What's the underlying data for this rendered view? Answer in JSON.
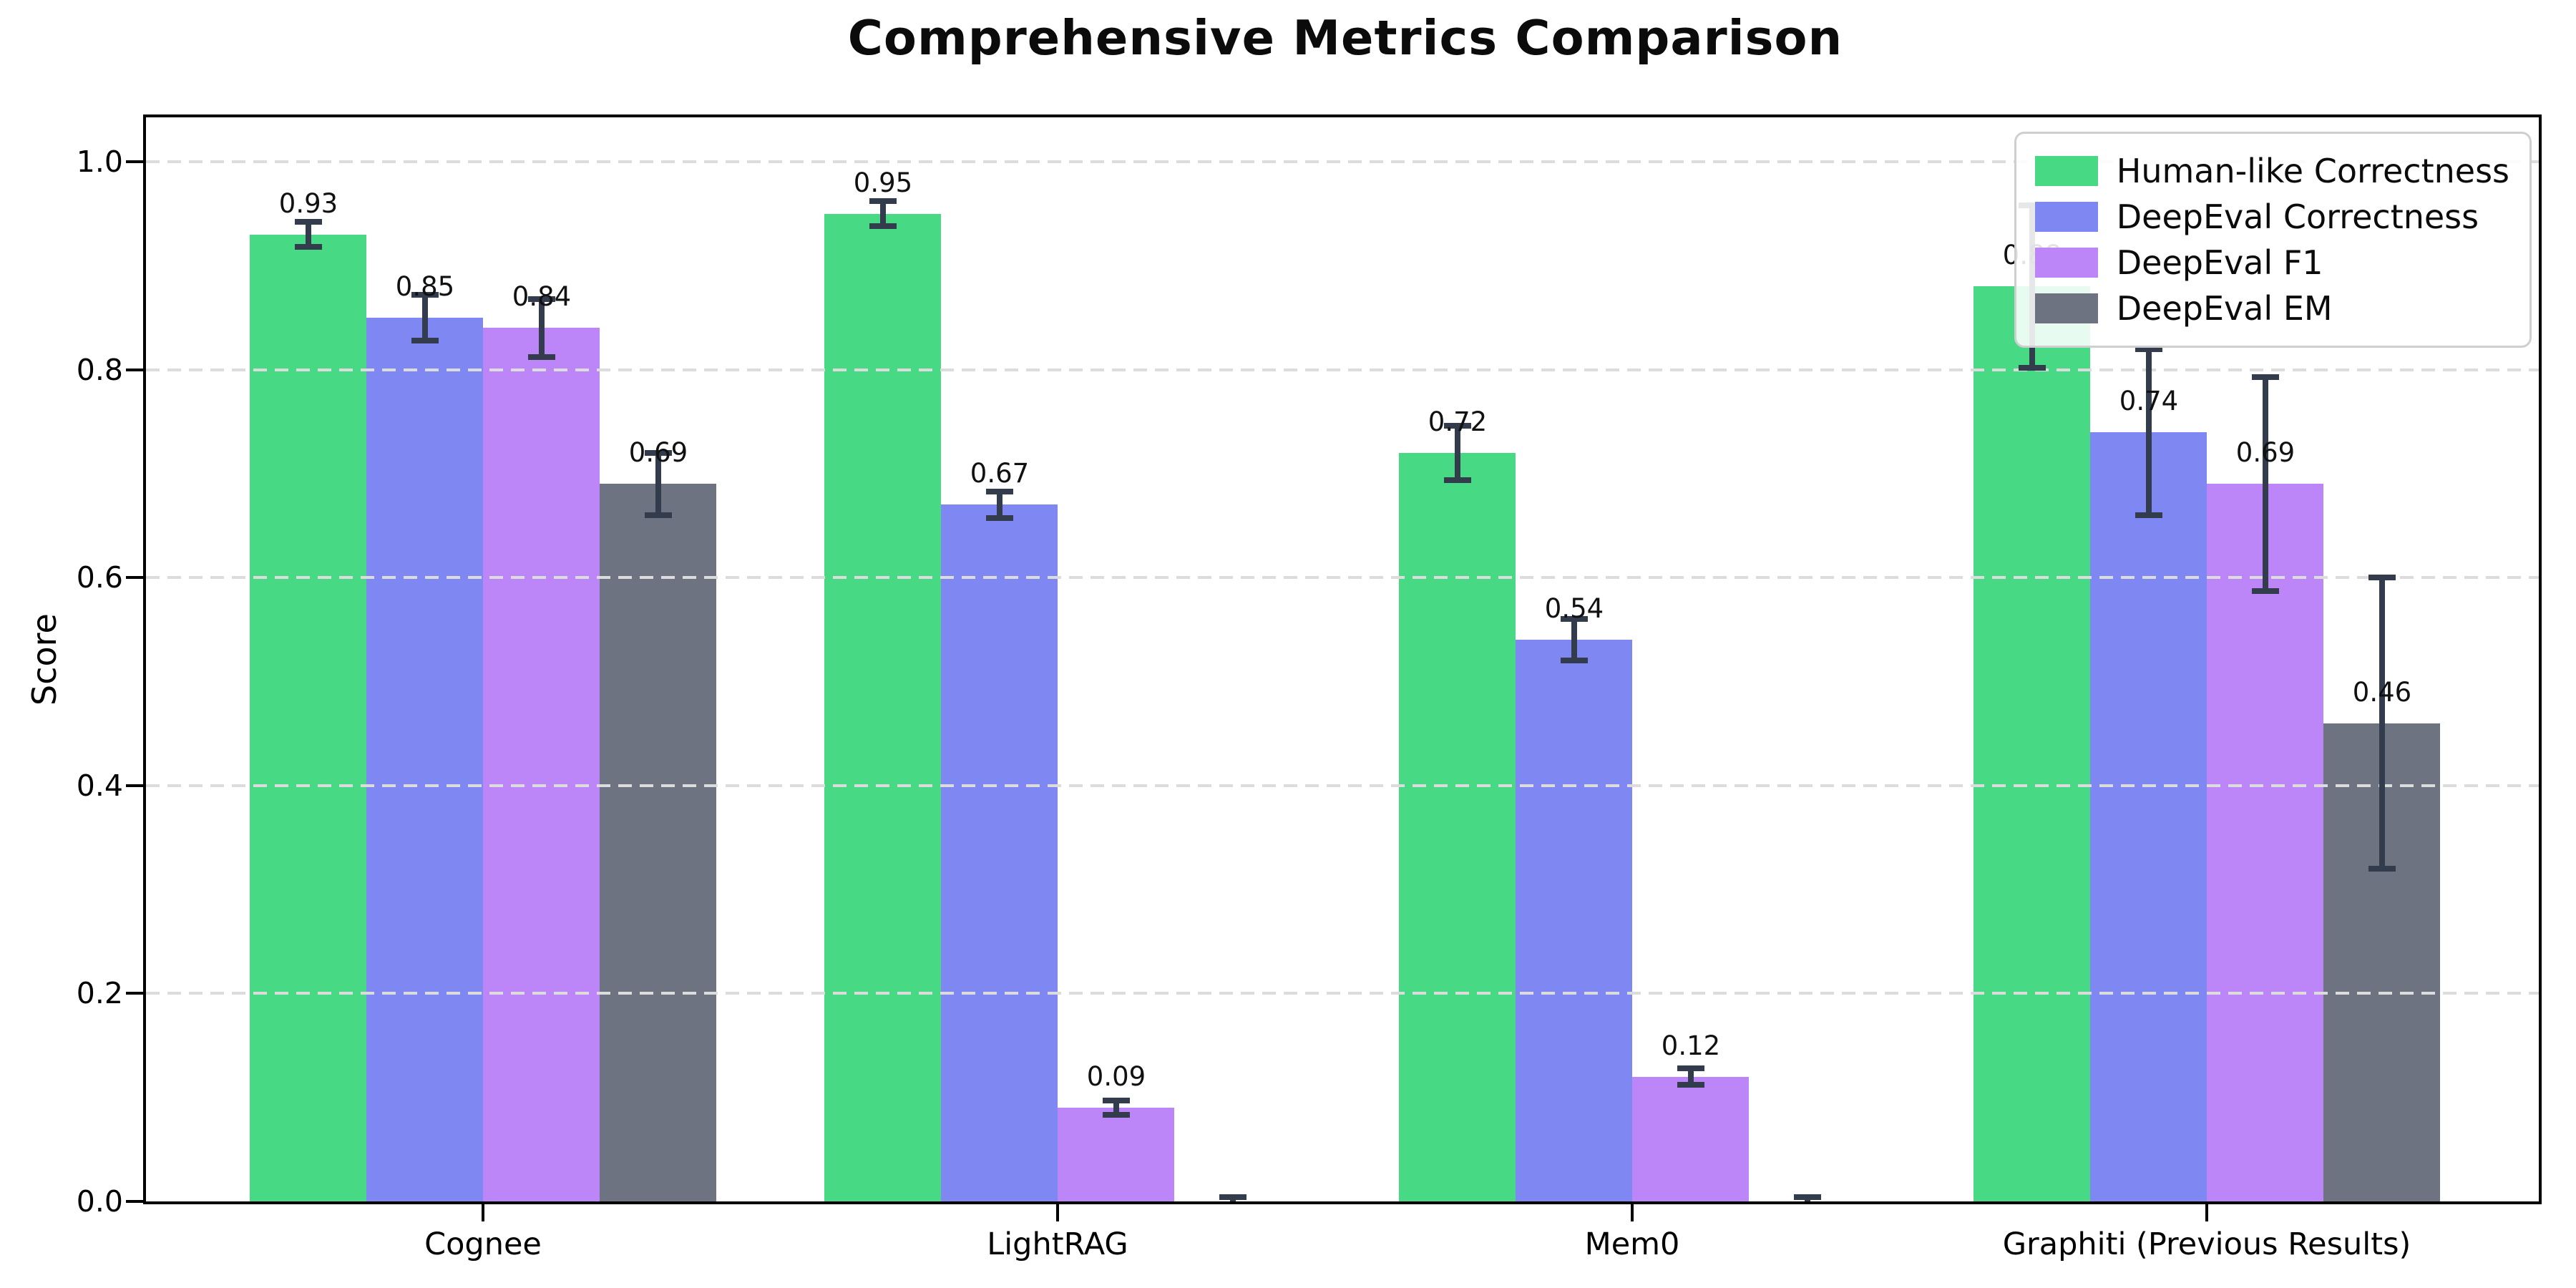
{
  "figure": {
    "background": "#ffffff"
  },
  "chart_data": {
    "type": "bar",
    "title": "Comprehensive Metrics Comparison",
    "xlabel": "",
    "ylabel": "Score",
    "ylim": [
      0.0,
      1.05
    ],
    "ytick_labels": [
      "0.0",
      "0.2",
      "0.4",
      "0.6",
      "0.8",
      "1.0"
    ],
    "ytick_values": [
      0.0,
      0.2,
      0.4,
      0.6,
      0.8,
      1.0
    ],
    "grid": {
      "axis": "y",
      "style": "dashed",
      "color": "#dcdcdc",
      "drawn_over_bars": true
    },
    "legend_position": "upper right",
    "error_bar_color": "#323c4d",
    "categories": [
      "Cognee",
      "LightRAG",
      "Mem0",
      "Graphiti (Previous Results)"
    ],
    "series": [
      {
        "name": "Human-like Correctness",
        "color": "#47d983",
        "values": [
          0.93,
          0.95,
          0.72,
          0.88
        ],
        "errors": [
          0.012,
          0.012,
          0.026,
          0.078
        ],
        "labels": [
          "0.93",
          "0.95",
          "0.72",
          "0.88"
        ]
      },
      {
        "name": "DeepEval Correctness",
        "color": "#7f88f2",
        "values": [
          0.85,
          0.67,
          0.54,
          0.74
        ],
        "errors": [
          0.022,
          0.013,
          0.02,
          0.08
        ],
        "labels": [
          "0.85",
          "0.67",
          "0.54",
          "0.74"
        ]
      },
      {
        "name": "DeepEval F1",
        "color": "#bd86f8",
        "values": [
          0.84,
          0.09,
          0.12,
          0.69
        ],
        "errors": [
          0.028,
          0.007,
          0.008,
          0.103
        ],
        "labels": [
          "0.84",
          "0.09",
          "0.12",
          "0.69"
        ]
      },
      {
        "name": "DeepEval EM",
        "color": "#6d7380",
        "values": [
          0.69,
          0.0,
          0.0,
          0.46
        ],
        "errors": [
          0.03,
          0.004,
          0.004,
          0.14
        ],
        "labels": [
          "0.69",
          "",
          "",
          "0.46"
        ]
      }
    ]
  }
}
